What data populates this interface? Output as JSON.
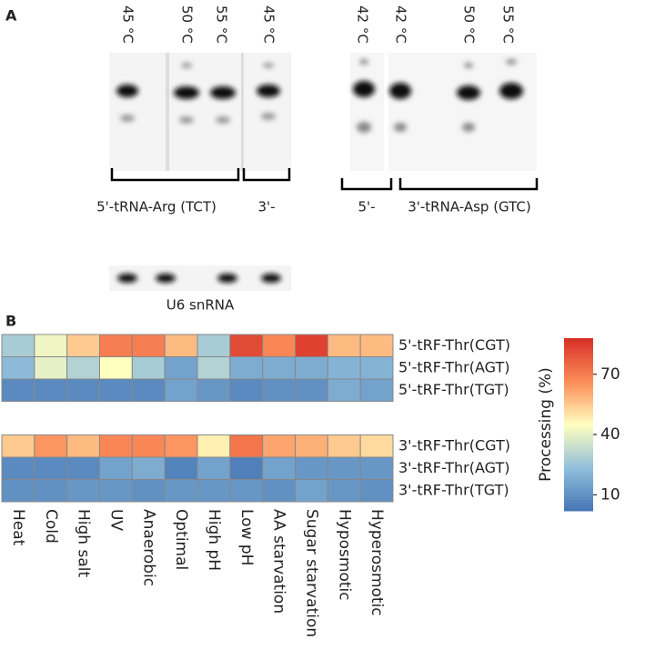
{
  "panel_a": {
    "label": "A",
    "lanes_left": [
      "45 °C",
      "50 °C",
      "55 °C",
      "45 °C"
    ],
    "lanes_right": [
      "42 °C",
      "42 °C",
      "50 °C",
      "55 °C"
    ],
    "brackets": [
      "5'-tRNA-Arg (TCT)",
      "3'-",
      "5'-",
      "3'-tRNA-Asp (GTC)"
    ],
    "loading_control": "U6 snRNA"
  },
  "chart_data": {
    "type": "heatmap",
    "panel_label": "B",
    "categories": [
      "Heat",
      "Cold",
      "High salt",
      "UV",
      "Anaerobic",
      "Optimal",
      "High pH",
      "Low pH",
      "AA starvation",
      "Sugar starvation",
      "Hyposmotic",
      "Hyperosmotic"
    ],
    "rows": [
      "5'-tRF-Thr(CGT)",
      "5'-tRF-Thr(AGT)",
      "5'-tRF-Thr(TGT)",
      "3'-tRF-Thr(CGT)",
      "3'-tRF-Thr(AGT)",
      "3'-tRF-Thr(TGT)"
    ],
    "values": [
      [
        28,
        42,
        55,
        70,
        70,
        58,
        28,
        82,
        68,
        84,
        58,
        58
      ],
      [
        22,
        40,
        30,
        45,
        28,
        15,
        30,
        18,
        18,
        18,
        20,
        20
      ],
      [
        8,
        8,
        8,
        8,
        8,
        15,
        12,
        8,
        10,
        10,
        18,
        15
      ],
      [
        55,
        65,
        58,
        68,
        68,
        65,
        48,
        72,
        62,
        60,
        55,
        52
      ],
      [
        8,
        8,
        8,
        15,
        18,
        6,
        15,
        5,
        15,
        12,
        12,
        12
      ],
      [
        10,
        10,
        12,
        12,
        10,
        12,
        12,
        12,
        10,
        15,
        12,
        10
      ]
    ],
    "colorbar_title": "Processing (%)",
    "clim": [
      2,
      88
    ],
    "cticks": [
      10,
      40,
      70
    ],
    "colorscale": [
      "#4575b4",
      "#91bfdb",
      "#ffffbf",
      "#fc8d59",
      "#d73027"
    ]
  }
}
